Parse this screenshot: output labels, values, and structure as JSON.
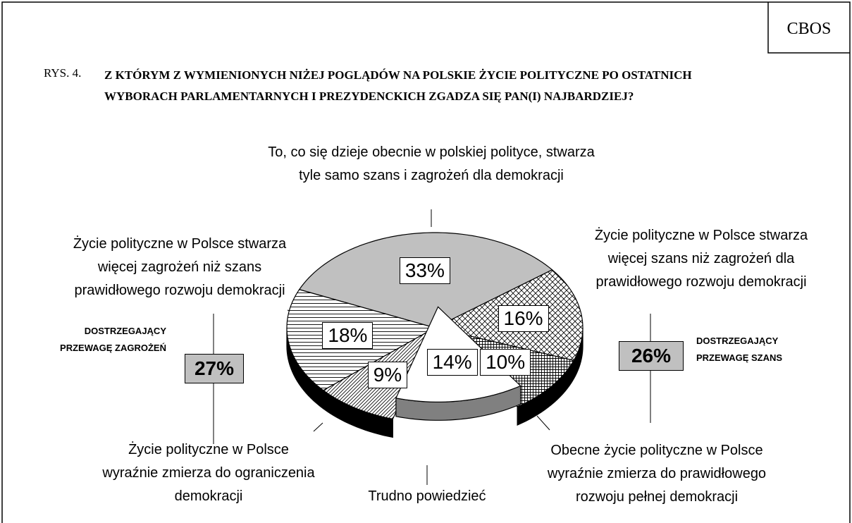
{
  "source": "CBOS",
  "chart_data": {
    "type": "pie",
    "figure_label": "RYS. 4.",
    "title": "Z KTÓRYM Z WYMIENIONYCH NIŻEJ POGLĄDÓW NA POLSKIE ŻYCIE POLITYCZNE PO OSTATNICH WYBORACH PARLAMENTARNYCH I PREZYDENCKICH ZGADZA SIĘ PAN(I) NAJBARDZIEJ?",
    "categories": [
      "To, co się dzieje obecnie w polskiej polityce, stwarza tyle samo szans i zagrożeń dla demokracji",
      "Życie polityczne w Polsce stwarza więcej szans niż zagrożeń dla prawidłowego rozwoju demokracji",
      "Obecne życie polityczne w Polsce wyraźnie zmierza do prawidłowego rozwoju pełnej demokracji",
      "Trudno powiedzieć",
      "Życie polityczne w Polsce wyraźnie zmierza do ograniczenia demokracji",
      "Życie polityczne w Polsce stwarza więcej zagrożeń niż szans prawidłowego rozwoju demokracji"
    ],
    "values": [
      33,
      16,
      10,
      14,
      9,
      18
    ],
    "value_labels": [
      "33%",
      "16%",
      "10%",
      "14%",
      "9%",
      "18%"
    ],
    "groups": [
      {
        "label": "DOSTRZEGAJĄCY PRZEWAGĘ ZAGROŻEŃ",
        "value": 27,
        "value_label": "27%"
      },
      {
        "label": "DOSTRZEGAJĄCY PRZEWAGĘ SZANS",
        "value": 26,
        "value_label": "26%"
      }
    ]
  }
}
